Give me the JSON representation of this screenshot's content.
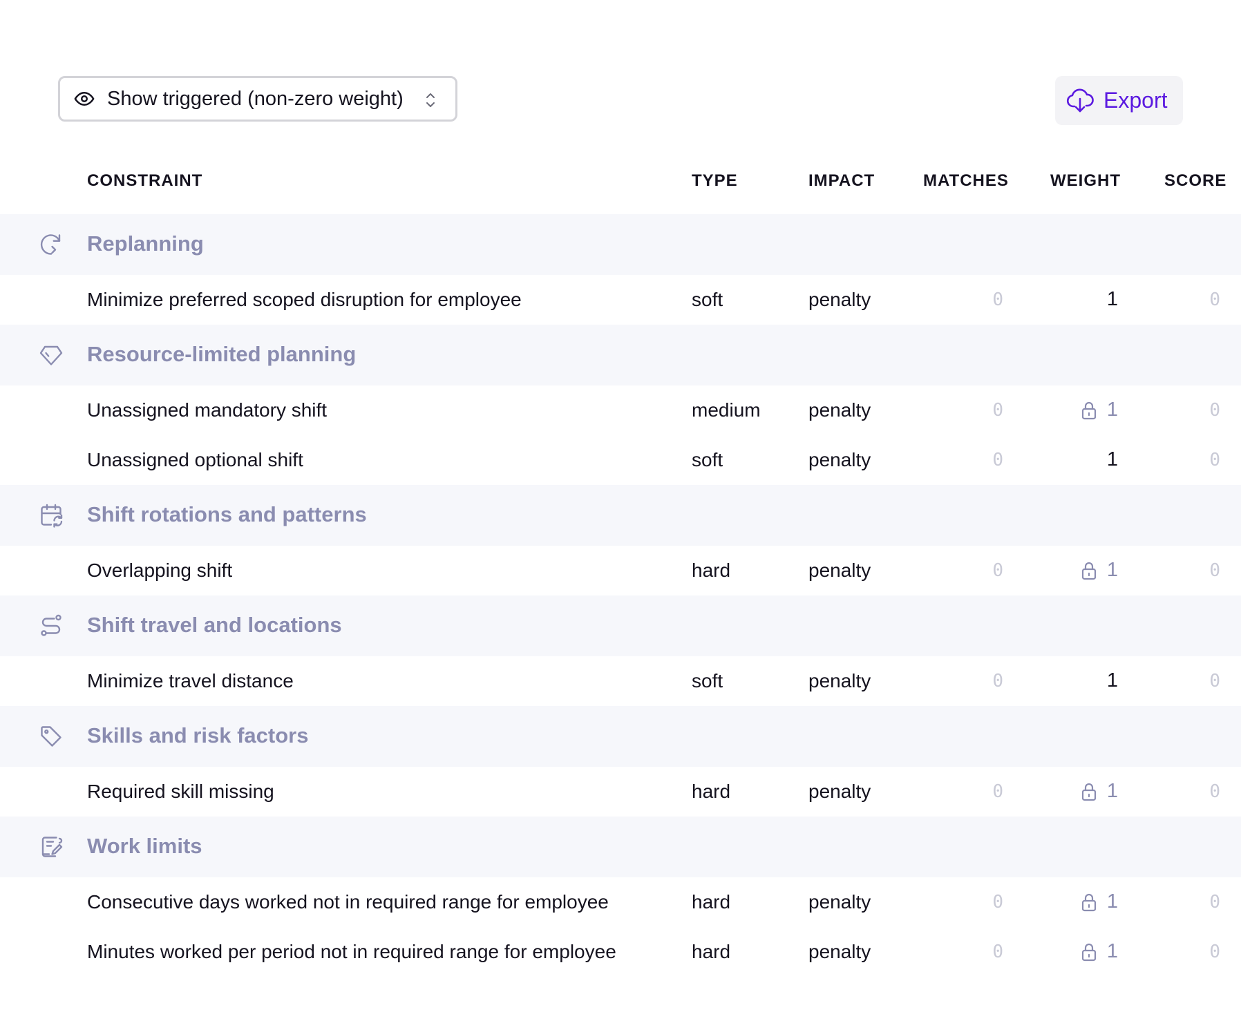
{
  "toolbar": {
    "filter_label": "Show triggered (non-zero weight)",
    "export_label": "Export",
    "accent_color": "#5b1ae0"
  },
  "columns": {
    "constraint": "CONSTRAINT",
    "type": "TYPE",
    "impact": "IMPACT",
    "matches": "MATCHES",
    "weight": "WEIGHT",
    "score": "SCORE"
  },
  "groups": [
    {
      "title": "Replanning",
      "icon": "replan-icon",
      "rows": [
        {
          "constraint": "Minimize preferred scoped disruption for employee",
          "type": "soft",
          "impact": "penalty",
          "matches": "0",
          "weight": "1",
          "locked": false,
          "score": "0"
        }
      ]
    },
    {
      "title": "Resource-limited planning",
      "icon": "diamond-icon",
      "rows": [
        {
          "constraint": "Unassigned mandatory shift",
          "type": "medium",
          "impact": "penalty",
          "matches": "0",
          "weight": "1",
          "locked": true,
          "score": "0"
        },
        {
          "constraint": "Unassigned optional shift",
          "type": "soft",
          "impact": "penalty",
          "matches": "0",
          "weight": "1",
          "locked": false,
          "score": "0"
        }
      ]
    },
    {
      "title": "Shift rotations and patterns",
      "icon": "calendar-rotate-icon",
      "rows": [
        {
          "constraint": "Overlapping shift",
          "type": "hard",
          "impact": "penalty",
          "matches": "0",
          "weight": "1",
          "locked": true,
          "score": "0"
        }
      ]
    },
    {
      "title": "Shift travel and locations",
      "icon": "route-icon",
      "rows": [
        {
          "constraint": "Minimize travel distance",
          "type": "soft",
          "impact": "penalty",
          "matches": "0",
          "weight": "1",
          "locked": false,
          "score": "0"
        }
      ]
    },
    {
      "title": "Skills and risk factors",
      "icon": "tag-icon",
      "rows": [
        {
          "constraint": "Required skill missing",
          "type": "hard",
          "impact": "penalty",
          "matches": "0",
          "weight": "1",
          "locked": true,
          "score": "0"
        }
      ]
    },
    {
      "title": "Work limits",
      "icon": "contract-icon",
      "rows": [
        {
          "constraint": "Consecutive days worked not in required range for employee",
          "type": "hard",
          "impact": "penalty",
          "matches": "0",
          "weight": "1",
          "locked": true,
          "score": "0"
        },
        {
          "constraint": "Minutes worked per period not in required range for employee",
          "type": "hard",
          "impact": "penalty",
          "matches": "0",
          "weight": "1",
          "locked": true,
          "score": "0"
        }
      ]
    }
  ]
}
